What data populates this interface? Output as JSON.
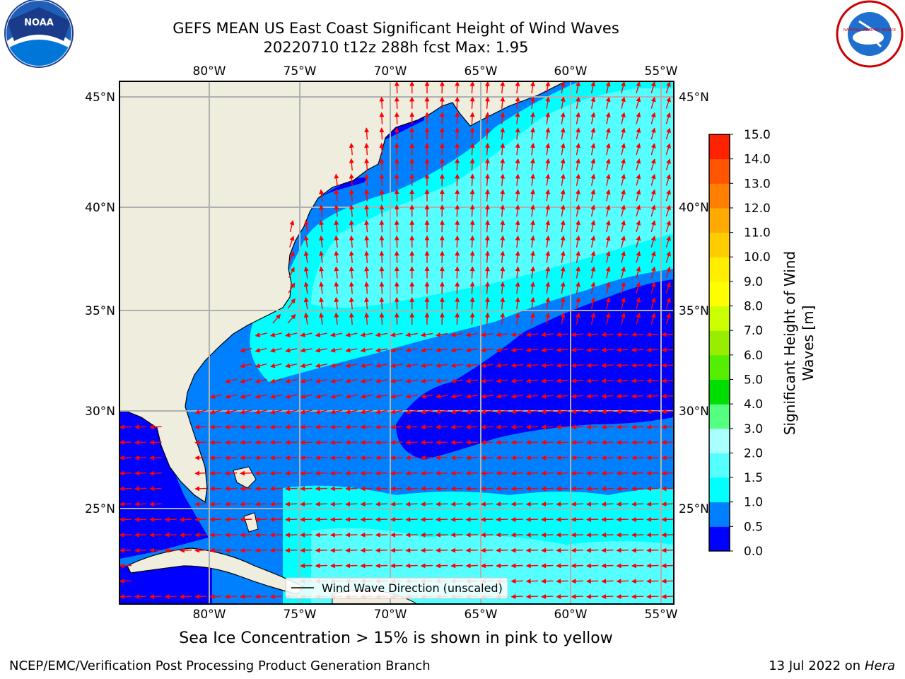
{
  "title": {
    "line1": "GEFS MEAN US East Coast Significant Height of Wind Waves",
    "line2": "20220710 t12z 288h fcst   Max: 1.95"
  },
  "longitude_labels": [
    "80°W",
    "75°W",
    "70°W",
    "65°W",
    "60°W",
    "55°W"
  ],
  "latitude_labels": [
    "45°N",
    "40°N",
    "35°N",
    "30°N",
    "25°N"
  ],
  "legend": {
    "label": "Wind Wave Direction (unscaled)"
  },
  "colorbar": {
    "label_line1": "Significant Height of Wind",
    "label_line2": "Waves [m]",
    "ticks": [
      "0.0",
      "0.5",
      "1.0",
      "1.5",
      "2.0",
      "3.0",
      "4.0",
      "5.0",
      "6.0",
      "7.0",
      "8.0",
      "9.0",
      "10.0",
      "11.0",
      "12.0",
      "13.0",
      "14.0",
      "15.0"
    ],
    "colors": [
      "#0000ff",
      "#0080ff",
      "#00ffff",
      "#55ffff",
      "#aaffff",
      "#55ff80",
      "#00dd00",
      "#55ee00",
      "#99ee00",
      "#ccff00",
      "#ffff00",
      "#ffee00",
      "#ffcc00",
      "#ffaa00",
      "#ff8000",
      "#ff5500",
      "#ff2200"
    ]
  },
  "caption": "Sea Ice Concentration > 15% is shown in pink to yellow",
  "footer": {
    "left": "NCEP/EMC/Verification Post Processing Product Generation Branch",
    "right_prefix": "13 Jul 2022 on ",
    "right_host": "Hera"
  },
  "logos": {
    "noaa": "NOAA",
    "nws": "NATIONAL WEATHER SERVICE"
  },
  "map_colors": {
    "land": "#efedde",
    "level_0_0_5": "#0000ff",
    "level_0_5_1_0": "#0080ff",
    "level_1_0_1_5": "#00ffff",
    "level_1_5_2_0": "#55ffff",
    "arrows": "#ff0000",
    "grid": "#b0b0b0"
  }
}
